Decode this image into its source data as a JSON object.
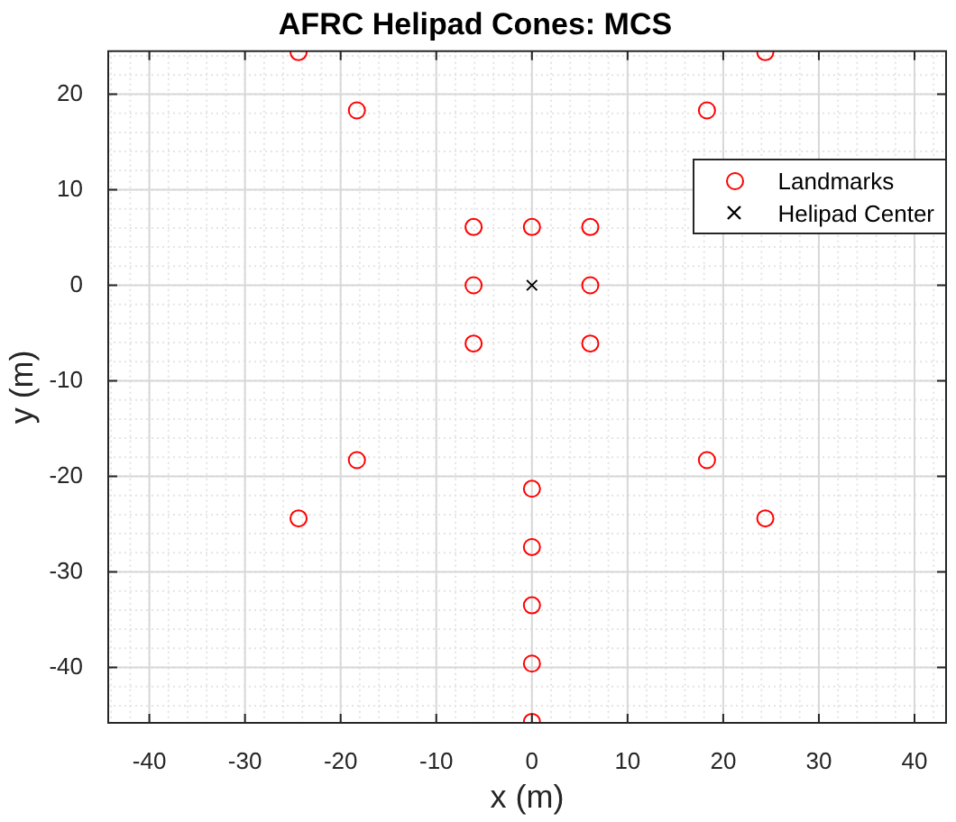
{
  "chart_data": {
    "type": "scatter",
    "title": "AFRC Helipad Cones: MCS",
    "xlabel": "x (m)",
    "ylabel": "y (m)",
    "xlim": [
      -44.3,
      43.3
    ],
    "ylim": [
      -45.8,
      24.5
    ],
    "xticks": [
      -40,
      -30,
      -20,
      -10,
      0,
      10,
      20,
      30,
      40
    ],
    "yticks": [
      -40,
      -30,
      -20,
      -10,
      0,
      10,
      20
    ],
    "grid": true,
    "legend": "top right",
    "series": [
      {
        "name": "Landmarks",
        "color": "#ff0000",
        "marker": "circle",
        "x": [
          -24.4,
          24.4,
          -18.3,
          18.3,
          -6.1,
          0,
          6.1,
          -6.1,
          6.1,
          -6.1,
          6.1,
          -18.3,
          18.3,
          -24.4,
          24.4,
          0,
          0,
          0,
          0,
          0
        ],
        "values": [
          24.4,
          24.4,
          18.3,
          18.3,
          6.1,
          6.1,
          6.1,
          0,
          0,
          -6.1,
          -6.1,
          -18.3,
          -18.3,
          -24.4,
          -24.4,
          -21.3,
          -27.4,
          -33.5,
          -39.6,
          -45.7
        ]
      },
      {
        "name": "Helipad Center",
        "color": "#000000",
        "marker": "cross",
        "x": [
          0
        ],
        "values": [
          0
        ]
      }
    ]
  }
}
